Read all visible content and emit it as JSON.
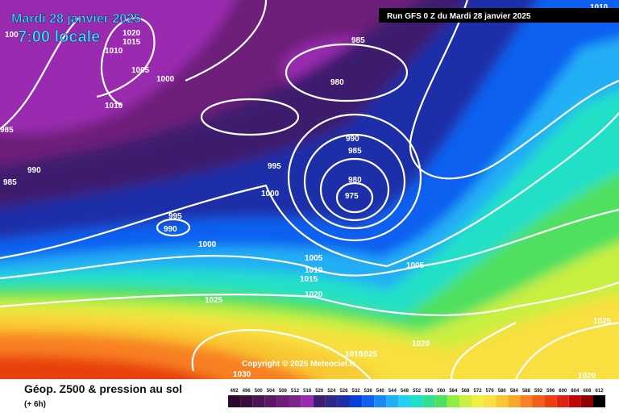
{
  "header": {
    "date": "Mardi 28 janvier 2025",
    "time": "7:00 locale",
    "run": "Run GFS 0 Z du Mardi 28 janvier 2025"
  },
  "map": {
    "isobar_labels": [
      "100",
      "1020",
      "1015",
      "1010",
      "1005",
      "1000",
      "1010",
      "985",
      "980",
      "985",
      "990",
      "985",
      "995",
      "990",
      "985",
      "980",
      "975",
      "1000",
      "995",
      "990",
      "1000",
      "1005",
      "1010",
      "1015",
      "1020",
      "1005",
      "1025",
      "1020",
      "1025",
      "1020",
      "1030",
      "1010",
      "1025",
      "1010"
    ],
    "copyright": "Copyright © 2025 Meteociel.fr"
  },
  "legend": {
    "title": "Géop. Z500 & pression au sol",
    "lead": "(+ 6h)",
    "scale": [
      {
        "value": 492,
        "color": "#2a0a2a"
      },
      {
        "value": 496,
        "color": "#3a0f3e"
      },
      {
        "value": 500,
        "color": "#4b1452"
      },
      {
        "value": 504,
        "color": "#5c1a66"
      },
      {
        "value": 508,
        "color": "#6e1f7a"
      },
      {
        "value": 512,
        "color": "#7e238c"
      },
      {
        "value": 516,
        "color": "#9a2bb0"
      },
      {
        "value": 520,
        "color": "#3c1f6e"
      },
      {
        "value": 524,
        "color": "#2c2a86"
      },
      {
        "value": 528,
        "color": "#1c2fa8"
      },
      {
        "value": 532,
        "color": "#0a3fd8"
      },
      {
        "value": 536,
        "color": "#1060f0"
      },
      {
        "value": 540,
        "color": "#1a88f5"
      },
      {
        "value": 544,
        "color": "#20aef5"
      },
      {
        "value": 548,
        "color": "#22d0f0"
      },
      {
        "value": 552,
        "color": "#20e0c8"
      },
      {
        "value": 556,
        "color": "#30e090"
      },
      {
        "value": 560,
        "color": "#50e060"
      },
      {
        "value": 564,
        "color": "#90ee40"
      },
      {
        "value": 568,
        "color": "#c8f040"
      },
      {
        "value": 572,
        "color": "#f0f040"
      },
      {
        "value": 576,
        "color": "#f8e040"
      },
      {
        "value": 580,
        "color": "#f8c830"
      },
      {
        "value": 584,
        "color": "#f8a828"
      },
      {
        "value": 588,
        "color": "#f88020"
      },
      {
        "value": 592,
        "color": "#f06018"
      },
      {
        "value": 596,
        "color": "#e84010"
      },
      {
        "value": 600,
        "color": "#e02010"
      },
      {
        "value": 604,
        "color": "#c00808"
      },
      {
        "value": 608,
        "color": "#900000"
      },
      {
        "value": 612,
        "color": "#000000"
      }
    ]
  }
}
